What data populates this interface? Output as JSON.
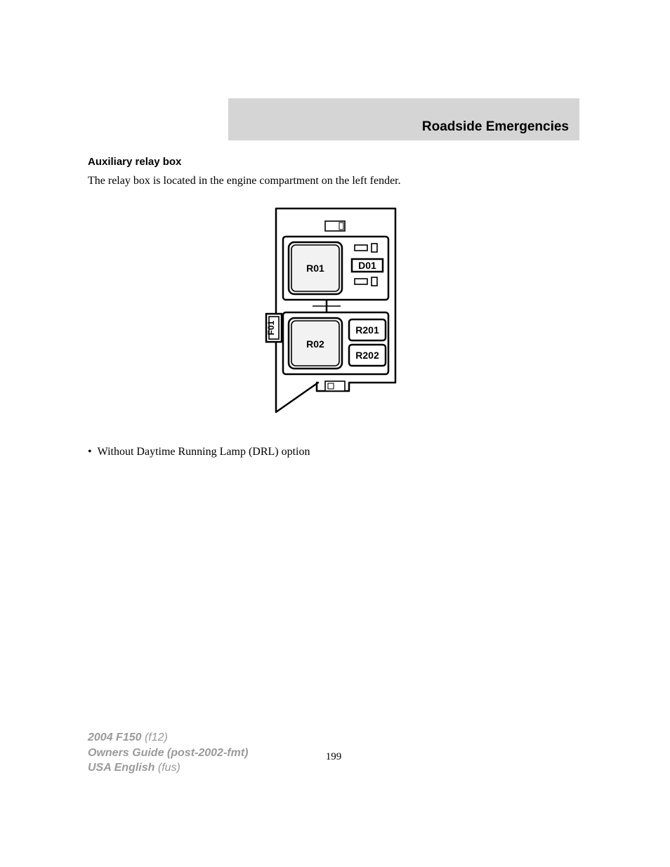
{
  "header": {
    "title": "Roadside Emergencies"
  },
  "section": {
    "heading": "Auxiliary relay box",
    "body": "The relay box is located in the engine compartment on the left fender."
  },
  "bullet": {
    "text": "Without Daytime Running Lamp (DRL) option"
  },
  "page_number": "199",
  "footer": {
    "line1_bold": "2004 F150",
    "line1_light": "(f12)",
    "line2_bold": "Owners Guide (post-2002-fmt)",
    "line3_bold": "USA English",
    "line3_light": "(fus)"
  },
  "diagram": {
    "type": "relay-box-schematic",
    "stroke": "#000000",
    "fill_light": "#f2f2f2",
    "bg": "#ffffff",
    "stroke_w_outer": 2.5,
    "stroke_w_inner": 1.6,
    "font_size_label": 14,
    "labels": {
      "R01": "R01",
      "D01": "D01",
      "F01": "F01",
      "R02": "R02",
      "R201": "R201",
      "R202": "R202"
    }
  }
}
